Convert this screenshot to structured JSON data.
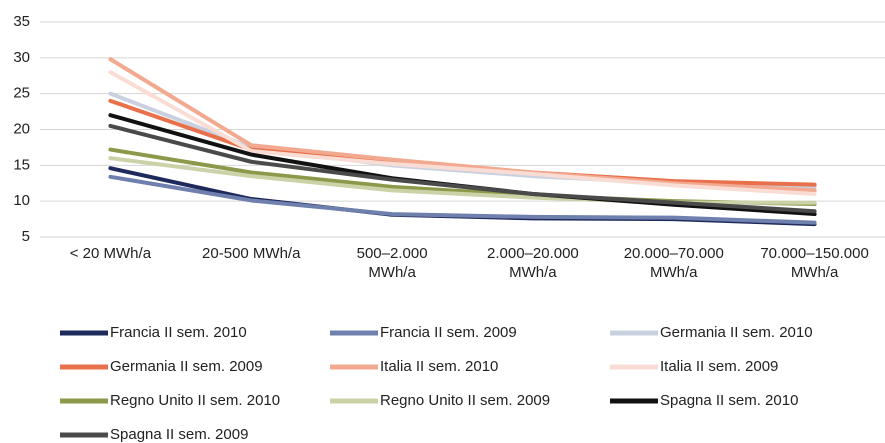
{
  "chart_data": {
    "type": "line",
    "categories": [
      "< 20 MWh/a",
      "20-500 MWh/a",
      "500–2.000 MWh/a",
      "2.000–20.000 MWh/a",
      "20.000–70.000 MWh/a",
      "70.000–150.000 MWh/a"
    ],
    "ylim": [
      5,
      35
    ],
    "yticks": [
      5,
      10,
      15,
      20,
      25,
      30,
      35
    ],
    "grid": true,
    "series": [
      {
        "name": "Francia II sem. 2010",
        "color": "#1f2a5c",
        "values": [
          14.6,
          10.3,
          8.1,
          7.6,
          7.5,
          6.8
        ]
      },
      {
        "name": "Francia II sem. 2009",
        "color": "#6f7fae",
        "values": [
          13.4,
          10.1,
          8.2,
          7.8,
          7.7,
          7.0
        ]
      },
      {
        "name": "Germania II sem. 2010",
        "color": "#c9d0e0",
        "values": [
          25,
          17.5,
          15,
          13.5,
          12.5,
          12.0
        ]
      },
      {
        "name": "Germania II sem. 2009",
        "color": "#e8704a",
        "values": [
          24,
          17.2,
          15.5,
          14,
          12.8,
          12.3
        ]
      },
      {
        "name": "Italia II sem. 2010",
        "color": "#f2a98f",
        "values": [
          29.8,
          17.8,
          15.8,
          14.0,
          12.5,
          11.5
        ]
      },
      {
        "name": "Italia II sem. 2009",
        "color": "#f9dcd4",
        "values": [
          28,
          17,
          15.2,
          13.8,
          12.2,
          11.0
        ]
      },
      {
        "name": "Regno Unito II sem. 2010",
        "color": "#8a9a4a",
        "values": [
          17.2,
          14,
          12,
          10.8,
          10,
          9.6
        ]
      },
      {
        "name": "Regno Unito II sem. 2009",
        "color": "#ccd2a8",
        "values": [
          16,
          13.5,
          11.5,
          10.5,
          9.8,
          9.8
        ]
      },
      {
        "name": "Spagna II sem. 2010",
        "color": "#111111",
        "values": [
          22,
          16.5,
          13.2,
          11,
          9.5,
          8.2
        ]
      },
      {
        "name": "Spagna II sem. 2009",
        "color": "#4a4a4a",
        "values": [
          20.5,
          15.5,
          13,
          11,
          9.8,
          8.6
        ]
      }
    ]
  }
}
